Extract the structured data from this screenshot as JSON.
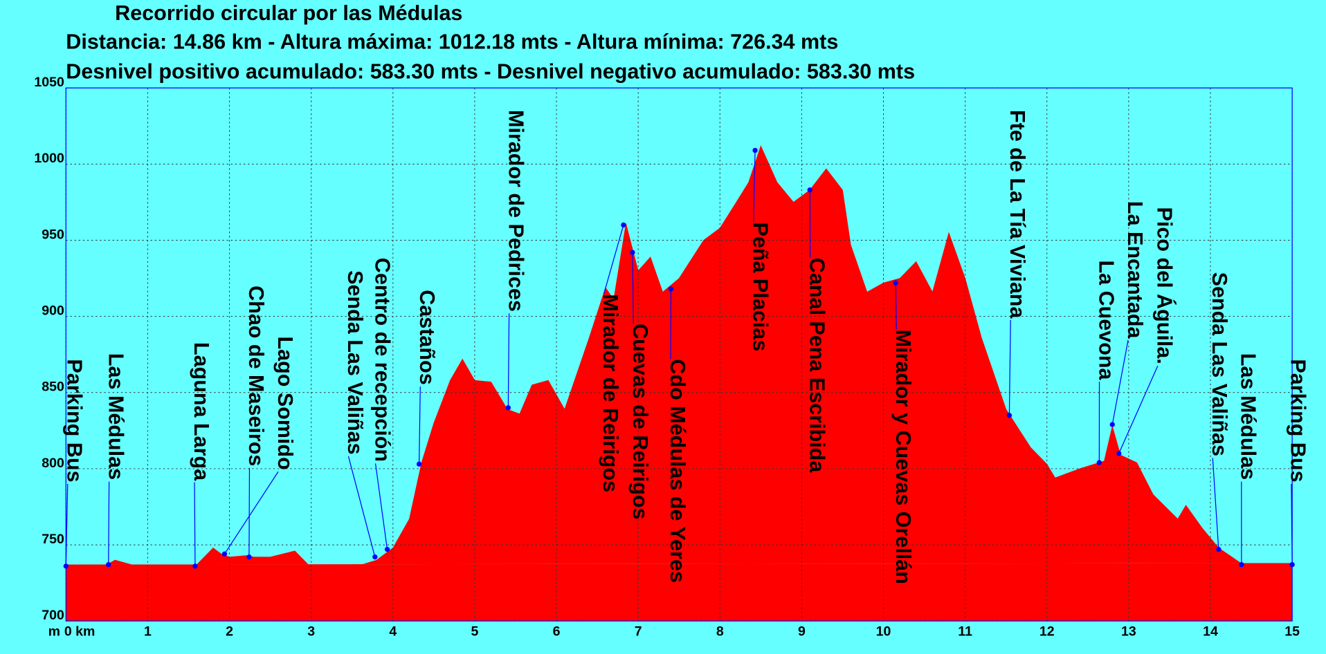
{
  "chart_data": {
    "type": "area",
    "title": "Recorrido circular por las Médulas",
    "subtitle": [
      "Distancia: 14.86 km - Altura máxima: 1012.18 mts - Altura mínima: 726.34 mts",
      "Desnivel positivo acumulado: 583.30 mts - Desnivel negativo acumulado: 583.30 mts"
    ],
    "ylabel": "m",
    "x": [
      0,
      0.2,
      0.3,
      0.5,
      0.6,
      0.8,
      1.0,
      1.1,
      1.2,
      1.4,
      1.6,
      1.8,
      1.9,
      2.0,
      2.2,
      2.3,
      2.5,
      2.8,
      3.0,
      3.1,
      3.3,
      3.5,
      3.8,
      4.0,
      4.2,
      4.35,
      4.5,
      4.7,
      4.85,
      5.0,
      5.2,
      5.4,
      5.55,
      5.7,
      5.9,
      6.1,
      6.4,
      6.6,
      6.7,
      6.85,
      7.0,
      7.15,
      7.3,
      7.5,
      7.8,
      8.0,
      8.2,
      8.35,
      8.5,
      8.7,
      8.9,
      9.1,
      9.3,
      9.5,
      9.6,
      9.8,
      10.0,
      10.2,
      10.4,
      10.6,
      10.8,
      11.0,
      11.2,
      11.5,
      11.8,
      12.0,
      12.1,
      12.4,
      12.7,
      12.8,
      12.9,
      13.1,
      13.3,
      13.6,
      13.7,
      13.9,
      14.1,
      14.4,
      14.6,
      14.7,
      14.85,
      15.0
    ],
    "values": [
      737,
      736,
      730,
      737,
      740,
      737,
      736,
      732,
      727,
      727,
      737,
      748,
      744,
      742,
      743,
      742,
      742,
      746,
      735,
      728,
      726,
      735,
      740,
      748,
      767,
      804,
      830,
      858,
      872,
      858,
      857,
      839,
      836,
      855,
      858,
      839,
      886,
      919,
      911,
      961,
      930,
      939,
      916,
      925,
      950,
      958,
      975,
      988,
      1012,
      988,
      975,
      983,
      997,
      983,
      947,
      916,
      922,
      925,
      936,
      916,
      955,
      925,
      886,
      839,
      814,
      803,
      794,
      800,
      805,
      828,
      809,
      804,
      783,
      767,
      776,
      761,
      748,
      737,
      733,
      730,
      737,
      738
    ],
    "color": "#ff0000",
    "marker_color": "#0000ff",
    "grid": true,
    "xlim": [
      0,
      15
    ],
    "ylim": [
      700,
      1050
    ],
    "xticks": [
      {
        "value": 0,
        "label": "0 km"
      },
      1,
      2,
      3,
      4,
      5,
      6,
      7,
      8,
      9,
      10,
      11,
      12,
      13,
      14,
      15
    ],
    "yticks": [
      700,
      750,
      800,
      850,
      900,
      950,
      1000,
      1050
    ],
    "annotations": [
      {
        "text": "Parking Bus",
        "x": 0,
        "y": 736
      },
      {
        "text": "Las Médulas",
        "x": 0.52,
        "y": 737
      },
      {
        "text": "Laguna Larga",
        "x": 1.58,
        "y": 736
      },
      {
        "text": "Chao de Maseiros",
        "x": 2.24,
        "y": 742
      },
      {
        "text": "Lago Somido",
        "x": 1.94,
        "y": 744
      },
      {
        "text": "Senda Las Valiñas",
        "x": 3.78,
        "y": 742
      },
      {
        "text": "Centro de recepción",
        "x": 3.93,
        "y": 747
      },
      {
        "text": "Castaños",
        "x": 4.32,
        "y": 803
      },
      {
        "text": "Mirador de Pedrices",
        "x": 5.41,
        "y": 840
      },
      {
        "text": "Mirador de Reirigos",
        "x": 6.82,
        "y": 960
      },
      {
        "text": "Cuevas de Reirigos",
        "x": 6.93,
        "y": 942
      },
      {
        "text": "Cdo Médulas de Yeres",
        "x": 7.4,
        "y": 918
      },
      {
        "text": "Peña Placias",
        "x": 8.43,
        "y": 1009
      },
      {
        "text": "Canal Pena Escribida",
        "x": 9.1,
        "y": 983
      },
      {
        "text": "Mirador y Cuevas Orellán",
        "x": 10.15,
        "y": 922
      },
      {
        "text": "Fte de La Tía Viviana",
        "x": 11.54,
        "y": 835
      },
      {
        "text": "La Cuevona",
        "x": 12.64,
        "y": 804
      },
      {
        "text": "La Encantada",
        "x": 12.8,
        "y": 829
      },
      {
        "text": "Pico del Águila.",
        "x": 12.88,
        "y": 810
      },
      {
        "text": "Senda Las Valiñas",
        "x": 14.1,
        "y": 747
      },
      {
        "text": "Las Médulas",
        "x": 14.38,
        "y": 737
      },
      {
        "text": "Parking Bus",
        "x": 15.0,
        "y": 737
      }
    ]
  }
}
